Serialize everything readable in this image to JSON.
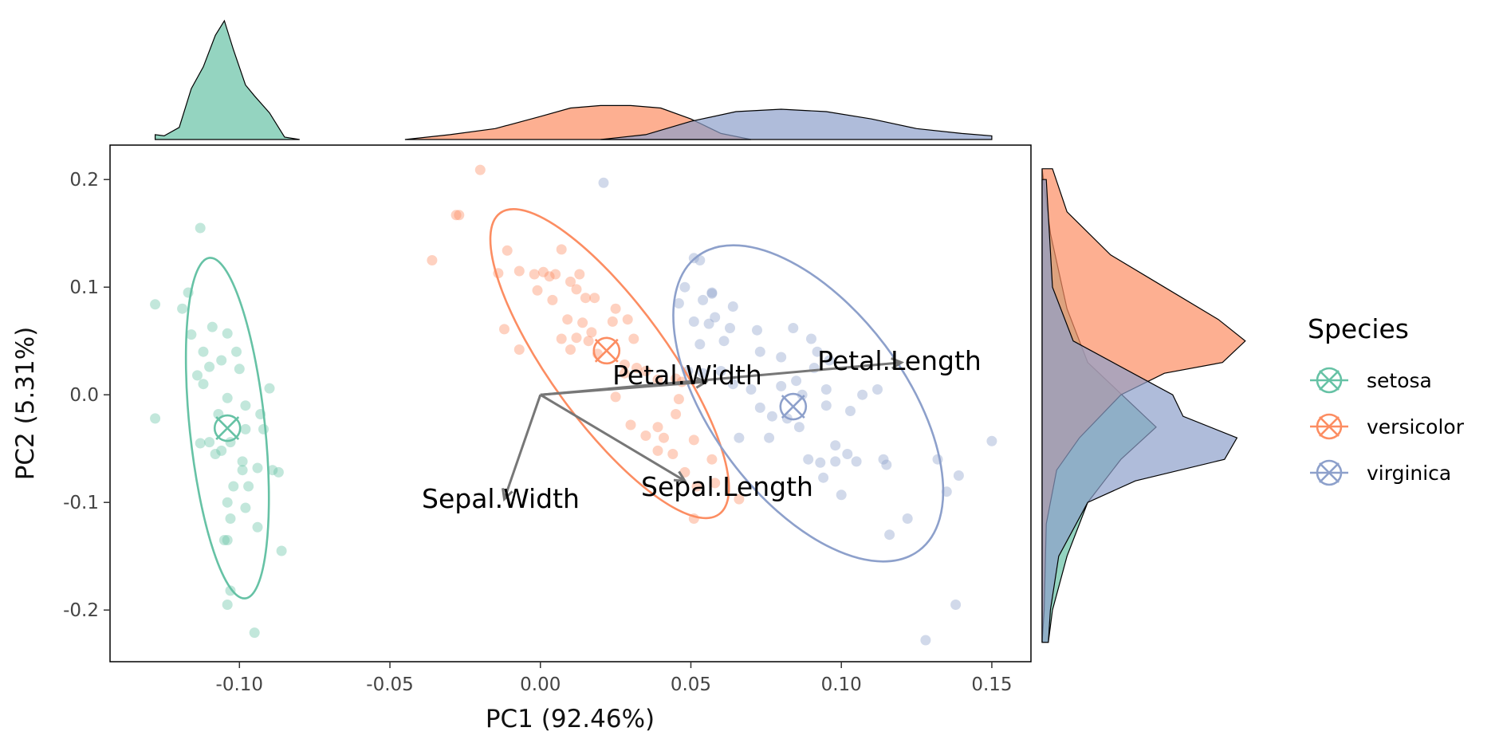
{
  "chart_data": {
    "type": "scatter",
    "xlabel": "PC1 (92.46%)",
    "ylabel": "PC2 (5.31%)",
    "xlim": [
      -0.143,
      0.163
    ],
    "ylim": [
      -0.248,
      0.232
    ],
    "x_ticks": [
      -0.1,
      -0.05,
      0.0,
      0.05,
      0.1,
      0.15
    ],
    "x_tick_labels": [
      "-0.10",
      "-0.05",
      "0.00",
      "0.05",
      "0.10",
      "0.15"
    ],
    "y_ticks": [
      -0.2,
      -0.1,
      0.0,
      0.1,
      0.2
    ],
    "y_tick_labels": [
      "-0.2",
      "-0.1",
      "0.0",
      "0.1",
      "0.2"
    ],
    "grid": false,
    "legend": {
      "title": "Species",
      "position": "right",
      "entries": [
        "setosa",
        "versicolor",
        "virginica"
      ]
    },
    "series": [
      {
        "name": "setosa",
        "color": "#66c2a5",
        "centroid": [
          -0.104,
          -0.031
        ],
        "ellipse": {
          "center": [
            -0.104,
            -0.031
          ],
          "rx": 0.0125,
          "ry": 0.171,
          "angle": -6
        },
        "points": [
          [
            -0.113,
            0.155
          ],
          [
            -0.117,
            0.095
          ],
          [
            -0.128,
            0.084
          ],
          [
            -0.119,
            0.08
          ],
          [
            -0.109,
            0.063
          ],
          [
            -0.104,
            0.057
          ],
          [
            -0.116,
            0.056
          ],
          [
            -0.112,
            0.04
          ],
          [
            -0.101,
            0.04
          ],
          [
            -0.106,
            0.032
          ],
          [
            -0.1,
            0.024
          ],
          [
            -0.11,
            0.026
          ],
          [
            -0.114,
            0.018
          ],
          [
            -0.09,
            0.006
          ],
          [
            -0.112,
            0.01
          ],
          [
            -0.104,
            -0.003
          ],
          [
            -0.098,
            -0.01
          ],
          [
            -0.107,
            -0.018
          ],
          [
            -0.093,
            -0.018
          ],
          [
            -0.128,
            -0.022
          ],
          [
            -0.092,
            -0.032
          ],
          [
            -0.098,
            -0.032
          ],
          [
            -0.11,
            -0.044
          ],
          [
            -0.113,
            -0.045
          ],
          [
            -0.103,
            -0.044
          ],
          [
            -0.106,
            -0.052
          ],
          [
            -0.108,
            -0.055
          ],
          [
            -0.099,
            -0.062
          ],
          [
            -0.089,
            -0.07
          ],
          [
            -0.094,
            -0.068
          ],
          [
            -0.099,
            -0.07
          ],
          [
            -0.097,
            -0.085
          ],
          [
            -0.102,
            -0.085
          ],
          [
            -0.087,
            -0.072
          ],
          [
            -0.104,
            -0.1
          ],
          [
            -0.098,
            -0.105
          ],
          [
            -0.103,
            -0.115
          ],
          [
            -0.094,
            -0.123
          ],
          [
            -0.105,
            -0.135
          ],
          [
            -0.104,
            -0.135
          ],
          [
            -0.086,
            -0.145
          ],
          [
            -0.103,
            -0.182
          ],
          [
            -0.104,
            -0.195
          ],
          [
            -0.095,
            -0.221
          ]
        ]
      },
      {
        "name": "versicolor",
        "color": "#fc8d62",
        "centroid": [
          0.022,
          0.041
        ],
        "ellipse": {
          "center": [
            0.023,
            0.029
          ],
          "rx": 0.0195,
          "ry": 0.186,
          "angle": -36
        },
        "points": [
          [
            -0.02,
            0.209
          ],
          [
            -0.027,
            0.167
          ],
          [
            -0.028,
            0.167
          ],
          [
            -0.036,
            0.125
          ],
          [
            -0.011,
            0.134
          ],
          [
            0.007,
            0.135
          ],
          [
            0.013,
            0.112
          ],
          [
            -0.014,
            0.113
          ],
          [
            -0.007,
            0.115
          ],
          [
            -0.002,
            0.112
          ],
          [
            0.001,
            0.114
          ],
          [
            0.005,
            0.112
          ],
          [
            0.003,
            0.11
          ],
          [
            0.01,
            0.105
          ],
          [
            0.018,
            0.09
          ],
          [
            0.012,
            0.098
          ],
          [
            -0.001,
            0.097
          ],
          [
            0.004,
            0.088
          ],
          [
            0.015,
            0.09
          ],
          [
            0.025,
            0.08
          ],
          [
            0.029,
            0.07
          ],
          [
            0.014,
            0.067
          ],
          [
            0.009,
            0.07
          ],
          [
            0.024,
            0.068
          ],
          [
            0.031,
            0.052
          ],
          [
            0.017,
            0.058
          ],
          [
            -0.012,
            0.061
          ],
          [
            0.007,
            0.052
          ],
          [
            0.012,
            0.053
          ],
          [
            0.016,
            0.05
          ],
          [
            -0.007,
            0.042
          ],
          [
            0.01,
            0.042
          ],
          [
            0.019,
            0.038
          ],
          [
            0.028,
            0.028
          ],
          [
            0.032,
            0.025
          ],
          [
            0.035,
            0.022
          ],
          [
            0.028,
            0.02
          ],
          [
            0.039,
            0.014
          ],
          [
            0.045,
            0.015
          ],
          [
            0.047,
            0.012
          ],
          [
            0.025,
            -0.002
          ],
          [
            0.046,
            -0.004
          ],
          [
            0.045,
            -0.018
          ],
          [
            0.03,
            -0.028
          ],
          [
            0.039,
            -0.03
          ],
          [
            0.035,
            -0.038
          ],
          [
            0.041,
            -0.04
          ],
          [
            0.051,
            -0.042
          ],
          [
            0.039,
            -0.052
          ],
          [
            0.044,
            -0.055
          ],
          [
            0.057,
            -0.06
          ],
          [
            0.048,
            -0.072
          ],
          [
            0.058,
            -0.082
          ],
          [
            0.052,
            -0.085
          ],
          [
            0.066,
            -0.097
          ],
          [
            0.051,
            -0.115
          ]
        ]
      },
      {
        "name": "virginica",
        "color": "#8da0cb",
        "centroid": [
          0.084,
          -0.011
        ],
        "ellipse": {
          "center": [
            0.089,
            -0.008
          ],
          "rx": 0.032,
          "ry": 0.184,
          "angle": -37
        },
        "points": [
          [
            0.021,
            0.197
          ],
          [
            0.051,
            0.127
          ],
          [
            0.053,
            0.125
          ],
          [
            0.048,
            0.1
          ],
          [
            0.057,
            0.095
          ],
          [
            0.057,
            0.094
          ],
          [
            0.054,
            0.088
          ],
          [
            0.046,
            0.085
          ],
          [
            0.064,
            0.082
          ],
          [
            0.058,
            0.072
          ],
          [
            0.051,
            0.068
          ],
          [
            0.056,
            0.066
          ],
          [
            0.063,
            0.062
          ],
          [
            0.072,
            0.06
          ],
          [
            0.084,
            0.062
          ],
          [
            0.09,
            0.052
          ],
          [
            0.061,
            0.05
          ],
          [
            0.053,
            0.047
          ],
          [
            0.073,
            0.04
          ],
          [
            0.08,
            0.035
          ],
          [
            0.092,
            0.04
          ],
          [
            0.096,
            0.032
          ],
          [
            0.091,
            0.025
          ],
          [
            0.049,
            0.022
          ],
          [
            0.054,
            0.02
          ],
          [
            0.06,
            0.022
          ],
          [
            0.085,
            0.013
          ],
          [
            0.08,
            0.008
          ],
          [
            0.064,
            0.01
          ],
          [
            0.07,
            0.005
          ],
          [
            0.087,
            0.0
          ],
          [
            0.095,
            0.005
          ],
          [
            0.107,
            0.0
          ],
          [
            0.112,
            0.005
          ],
          [
            0.095,
            -0.01
          ],
          [
            0.103,
            -0.015
          ],
          [
            0.073,
            -0.012
          ],
          [
            0.077,
            -0.02
          ],
          [
            0.082,
            -0.022
          ],
          [
            0.086,
            -0.03
          ],
          [
            0.076,
            -0.04
          ],
          [
            0.066,
            -0.04
          ],
          [
            0.098,
            -0.047
          ],
          [
            0.102,
            -0.055
          ],
          [
            0.089,
            -0.06
          ],
          [
            0.093,
            -0.063
          ],
          [
            0.098,
            -0.062
          ],
          [
            0.105,
            -0.062
          ],
          [
            0.114,
            -0.06
          ],
          [
            0.115,
            -0.065
          ],
          [
            0.132,
            -0.06
          ],
          [
            0.15,
            -0.043
          ],
          [
            0.139,
            -0.075
          ],
          [
            0.094,
            -0.077
          ],
          [
            0.1,
            -0.093
          ],
          [
            0.135,
            -0.09
          ],
          [
            0.122,
            -0.115
          ],
          [
            0.116,
            -0.13
          ],
          [
            0.138,
            -0.195
          ],
          [
            0.128,
            -0.228
          ]
        ]
      }
    ],
    "loadings": [
      {
        "name": "Sepal.Length",
        "vector": [
          0.048,
          -0.08
        ]
      },
      {
        "name": "Sepal.Width",
        "vector": [
          -0.012,
          -0.097
        ]
      },
      {
        "name": "Petal.Length",
        "vector": [
          0.12,
          0.03
        ]
      },
      {
        "name": "Petal.Width",
        "vector": [
          0.055,
          0.012
        ]
      }
    ],
    "marginal_x": {
      "type": "density",
      "series": [
        {
          "name": "setosa",
          "x": [
            -0.128,
            -0.125,
            -0.12,
            -0.116,
            -0.112,
            -0.108,
            -0.105,
            -0.102,
            -0.098,
            -0.095,
            -0.09,
            -0.085,
            -0.08
          ],
          "density": [
            0.04,
            0.03,
            0.1,
            0.42,
            0.6,
            0.86,
            0.98,
            0.74,
            0.45,
            0.36,
            0.22,
            0.02,
            0.0
          ]
        },
        {
          "name": "versicolor",
          "x": [
            -0.045,
            -0.03,
            -0.015,
            0.0,
            0.01,
            0.02,
            0.03,
            0.04,
            0.05,
            0.06,
            0.07
          ],
          "density": [
            0.0,
            0.04,
            0.09,
            0.19,
            0.26,
            0.28,
            0.28,
            0.26,
            0.17,
            0.05,
            0.0
          ]
        },
        {
          "name": "virginica",
          "x": [
            0.02,
            0.035,
            0.05,
            0.065,
            0.08,
            0.095,
            0.11,
            0.125,
            0.14,
            0.15
          ],
          "density": [
            0.0,
            0.04,
            0.15,
            0.23,
            0.25,
            0.23,
            0.17,
            0.09,
            0.05,
            0.03
          ]
        }
      ]
    },
    "marginal_y": {
      "type": "density",
      "series": [
        {
          "name": "setosa",
          "y": [
            0.21,
            0.15,
            0.08,
            0.03,
            -0.03,
            -0.06,
            -0.1,
            -0.15,
            -0.2,
            -0.23
          ],
          "density": [
            0.0,
            0.04,
            0.12,
            0.22,
            0.55,
            0.38,
            0.22,
            0.12,
            0.05,
            0.03
          ]
        },
        {
          "name": "versicolor",
          "y": [
            0.21,
            0.17,
            0.13,
            0.1,
            0.07,
            0.05,
            0.03,
            0.02,
            0.0,
            -0.04,
            -0.07,
            -0.12,
            -0.2,
            -0.23
          ],
          "density": [
            0.05,
            0.12,
            0.33,
            0.59,
            0.85,
            0.98,
            0.87,
            0.59,
            0.38,
            0.18,
            0.07,
            0.02,
            0.01,
            0.0
          ]
        },
        {
          "name": "virginica",
          "y": [
            0.2,
            0.1,
            0.05,
            0.0,
            -0.02,
            -0.04,
            -0.06,
            -0.08,
            -0.1,
            -0.15,
            -0.2,
            -0.23
          ],
          "density": [
            0.02,
            0.05,
            0.15,
            0.63,
            0.68,
            0.94,
            0.88,
            0.45,
            0.22,
            0.08,
            0.04,
            0.03
          ]
        }
      ]
    }
  }
}
